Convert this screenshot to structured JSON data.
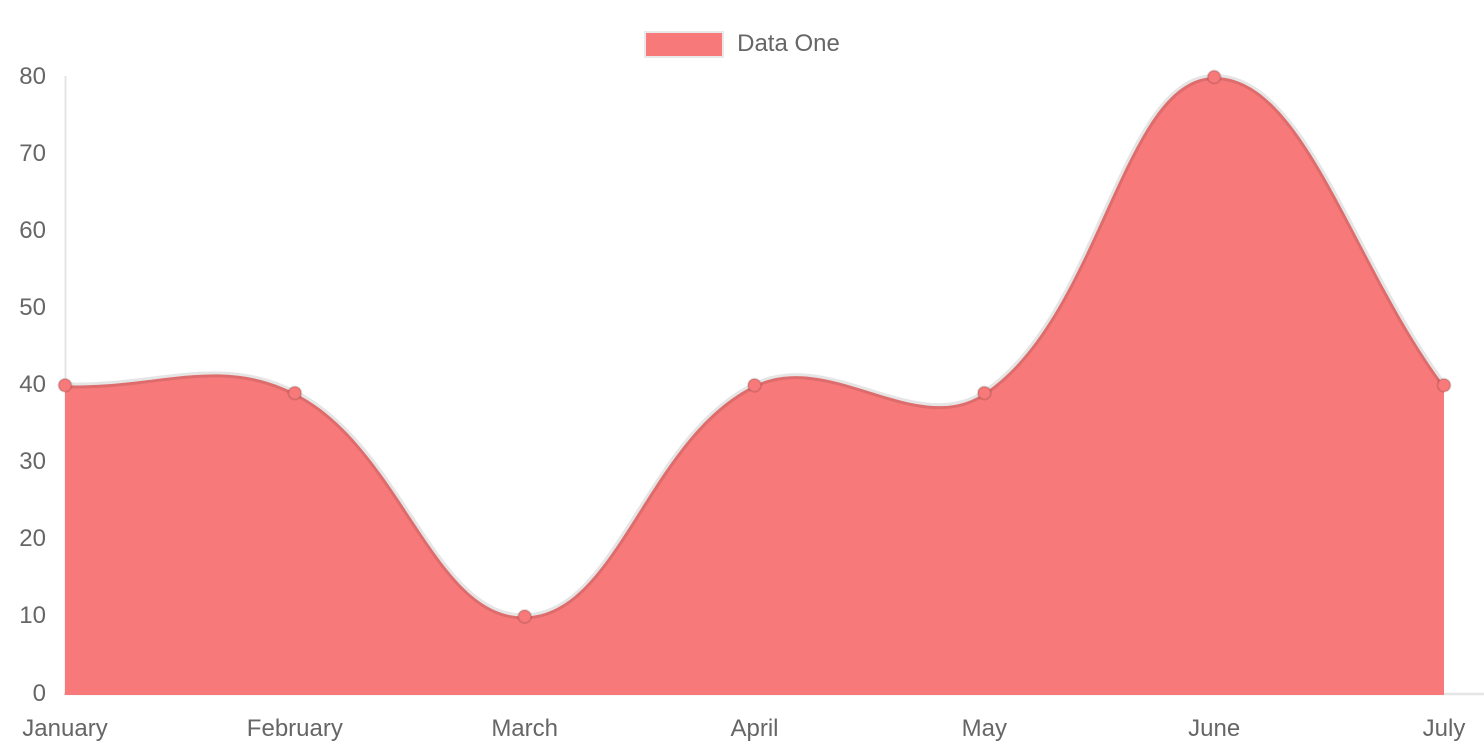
{
  "chart_data": {
    "type": "area",
    "title": "",
    "categories": [
      "January",
      "February",
      "March",
      "April",
      "May",
      "June",
      "July"
    ],
    "series": [
      {
        "name": "Data One",
        "values": [
          40,
          39,
          10,
          40,
          39,
          80,
          40
        ],
        "fill_color": "#f87979",
        "line_color": "rgba(0,0,0,0.10)",
        "point_fill": "#f87979",
        "point_border": "rgba(0,0,0,0.12)"
      }
    ],
    "xlabel": "",
    "ylabel": "",
    "ylim": [
      0,
      80
    ],
    "yticks": [
      0,
      10,
      20,
      30,
      40,
      50,
      60,
      70,
      80
    ],
    "line_tension": 0.4,
    "grid": false,
    "legend_position": "top",
    "axis_color": "rgba(0,0,0,0.10)",
    "tick_label_color": "#666666"
  },
  "legend": {
    "items": [
      {
        "label": "Data One",
        "swatch_color": "#f87979"
      }
    ]
  }
}
